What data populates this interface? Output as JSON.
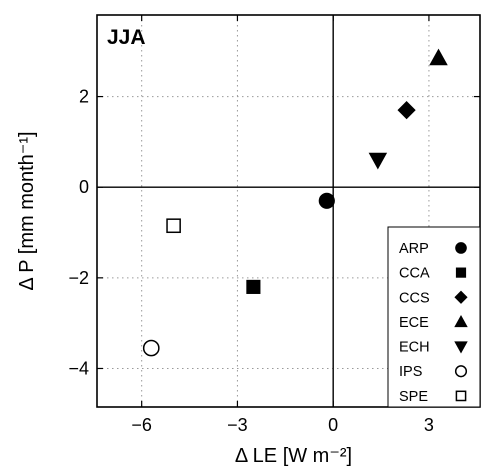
{
  "chart_data": {
    "type": "scatter",
    "panel_label": "JJA",
    "xlabel": "Δ LE   [W m⁻²]",
    "ylabel": "Δ P   [mm month⁻¹]",
    "xlim": [
      -7.4,
      4.6
    ],
    "ylim": [
      -4.85,
      3.8
    ],
    "xticks": [
      -6,
      -3,
      0,
      3
    ],
    "yticks": [
      2,
      0,
      -2,
      -4
    ],
    "xtick_labels": [
      "−6",
      "−3",
      "0",
      "3"
    ],
    "ytick_labels": [
      "2",
      "0",
      "−2",
      "−4"
    ],
    "grid": "dotted",
    "zero_lines": true,
    "legend_position": "bottom-right",
    "points": [
      {
        "name": "ARP",
        "marker": "circle-filled",
        "x": -0.2,
        "y": -0.3
      },
      {
        "name": "CCA",
        "marker": "square-filled",
        "x": -2.5,
        "y": -2.2
      },
      {
        "name": "CCS",
        "marker": "diamond-filled",
        "x": 2.3,
        "y": 1.7
      },
      {
        "name": "ECE",
        "marker": "triangle-up-filled",
        "x": 3.3,
        "y": 2.85
      },
      {
        "name": "ECH",
        "marker": "triangle-down-filled",
        "x": 1.4,
        "y": 0.6
      },
      {
        "name": "IPS",
        "marker": "circle-open",
        "x": -5.7,
        "y": -3.55
      },
      {
        "name": "SPE",
        "marker": "square-open",
        "x": -5.0,
        "y": -0.85
      }
    ]
  }
}
